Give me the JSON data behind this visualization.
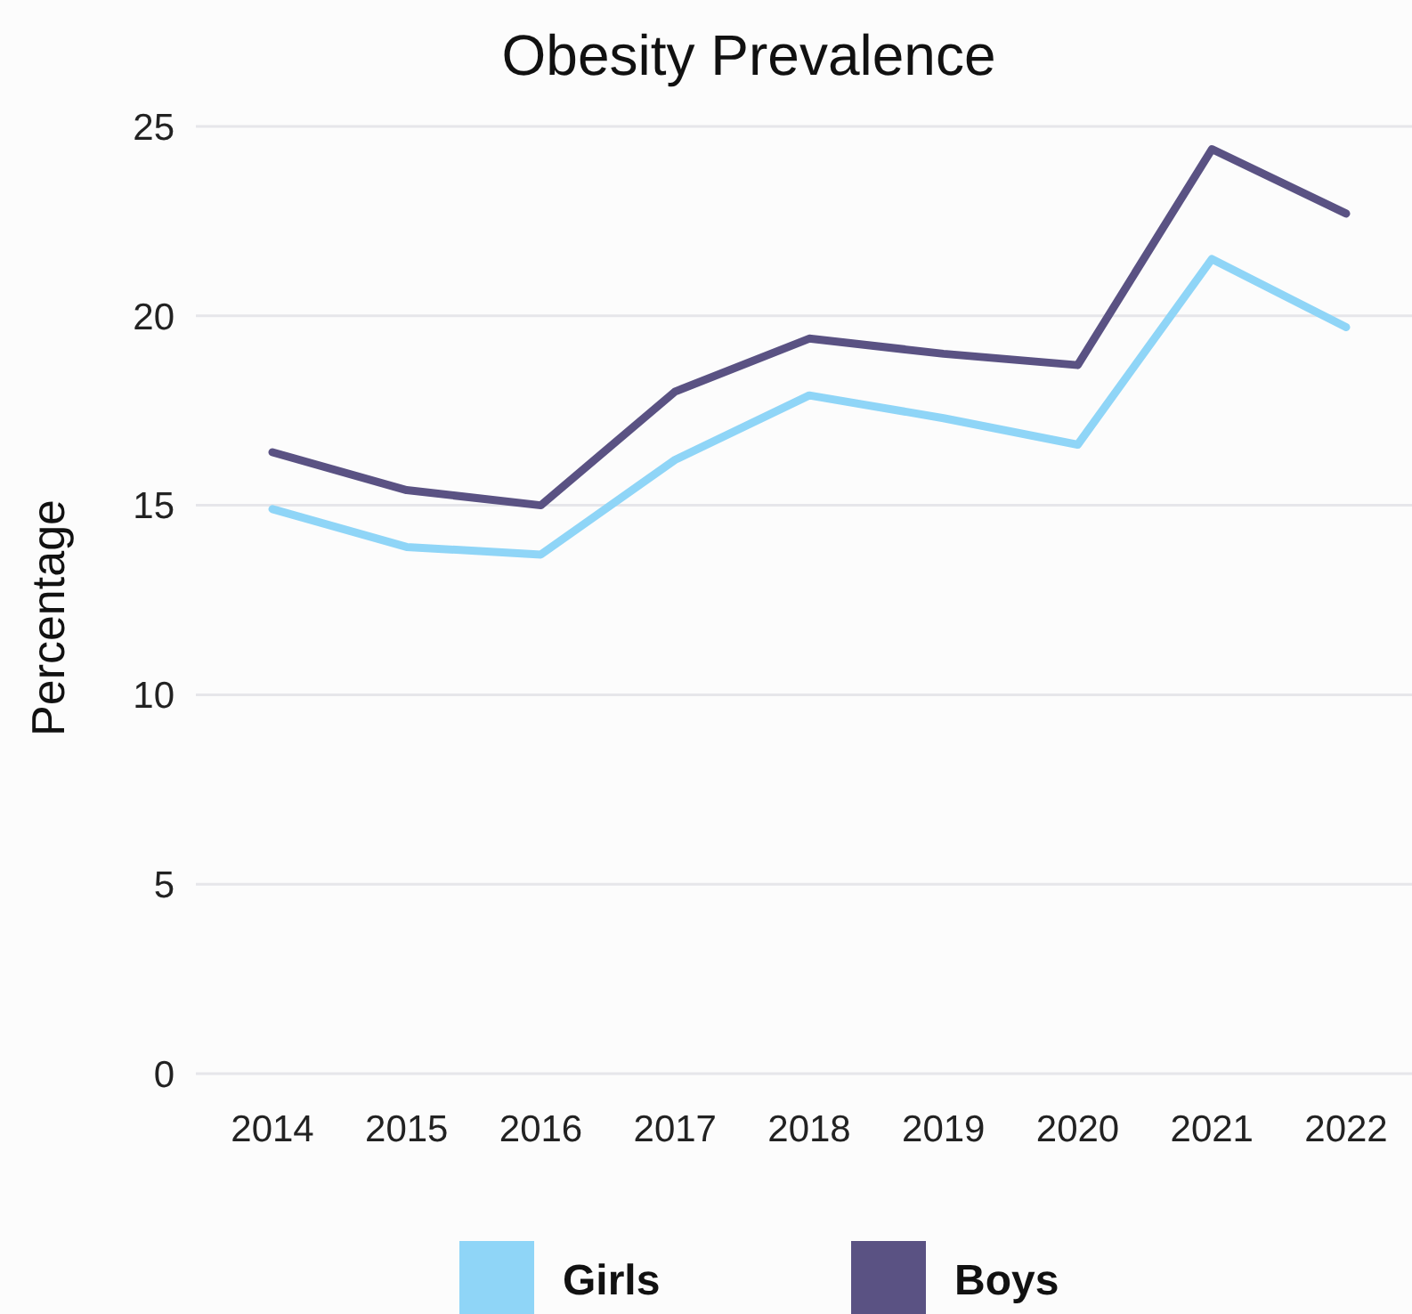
{
  "chart_data": {
    "type": "line",
    "title": "Obesity Prevalence",
    "ylabel": "Percentage",
    "categories": [
      "2014",
      "2015",
      "2016",
      "2017",
      "2018",
      "2019",
      "2020",
      "2021",
      "2022"
    ],
    "series": [
      {
        "name": "Girls",
        "color": "#8fd5f7",
        "values": [
          14.9,
          13.9,
          13.7,
          16.2,
          17.9,
          17.3,
          16.6,
          21.5,
          19.7
        ]
      },
      {
        "name": "Boys",
        "color": "#5a5283",
        "values": [
          16.4,
          15.4,
          15.0,
          18.0,
          19.4,
          19.0,
          18.7,
          24.4,
          22.7
        ]
      }
    ],
    "ylim": [
      0,
      25
    ],
    "yticks": [
      0,
      5,
      10,
      15,
      20,
      25
    ],
    "grid": "y",
    "legend": "bottom",
    "marker": "none",
    "line_style": "solid"
  }
}
